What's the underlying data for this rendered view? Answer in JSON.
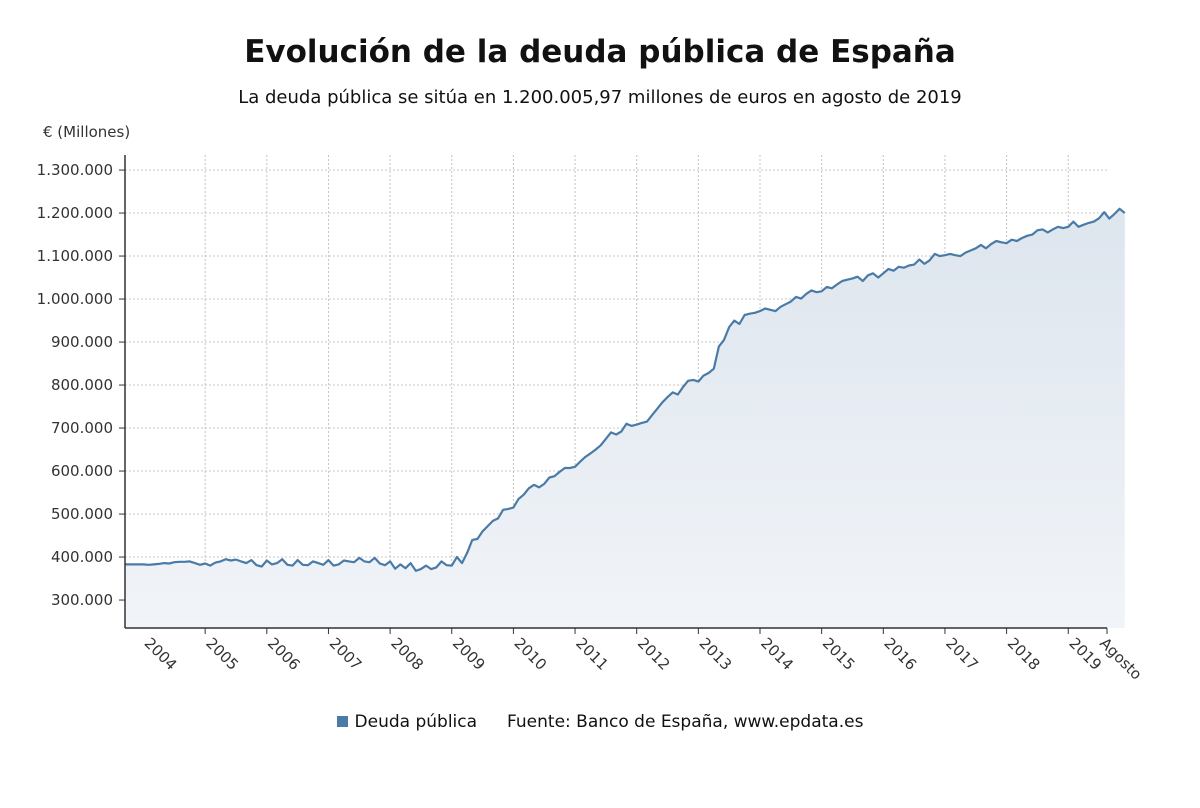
{
  "header": {
    "title": "Evolución de la deuda pública de España",
    "subtitle": "La deuda pública se sitúa en 1.200.005,97 millones de euros en agosto de 2019"
  },
  "legend": {
    "series_label": "Deuda pública",
    "source": "Fuente: Banco de España, www.epdata.es"
  },
  "colors": {
    "line": "#4a7ba6",
    "area_top": "#dde5ee",
    "area_bottom": "#f1f4f8",
    "grid": "#bfbfbf"
  },
  "chart_data": {
    "type": "area",
    "title": "Evolución de la deuda pública de España",
    "subtitle": "La deuda pública se sitúa en 1.200.005,97 millones de euros en agosto de 2019",
    "ylabel": "€ (Millones)",
    "ylim": [
      235000,
      1335000
    ],
    "yticks": [
      "300.000",
      "400.000",
      "500.000",
      "600.000",
      "700.000",
      "800.000",
      "900.000",
      "1.000.000",
      "1.100.000",
      "1.200.000",
      "1.300.000"
    ],
    "ytick_values": [
      300000,
      400000,
      500000,
      600000,
      700000,
      800000,
      900000,
      1000000,
      1100000,
      1200000,
      1300000
    ],
    "xticks": [
      "2004",
      "2005",
      "2006",
      "2007",
      "2008",
      "2009",
      "2010",
      "2011",
      "2012",
      "2013",
      "2014",
      "2015",
      "2016",
      "2017",
      "2018",
      "2019",
      "Agosto"
    ],
    "grid": true,
    "legend_position": "bottom",
    "series": [
      {
        "name": "Deuda pública",
        "x_start": "2004-01",
        "x_end": "2019-08",
        "frequency": "monthly",
        "values": [
          383000,
          382000,
          383000,
          384000,
          386000,
          385000,
          388000,
          389000,
          389000,
          390000,
          386000,
          382000,
          385000,
          380000,
          387000,
          390000,
          395000,
          392000,
          394000,
          390000,
          386000,
          393000,
          381000,
          378000,
          392000,
          383000,
          386000,
          395000,
          382000,
          380000,
          393000,
          382000,
          381000,
          390000,
          386000,
          382000,
          393000,
          380000,
          383000,
          392000,
          390000,
          388000,
          398000,
          390000,
          388000,
          398000,
          385000,
          381000,
          390000,
          373000,
          383000,
          374000,
          386000,
          368000,
          372000,
          380000,
          372000,
          376000,
          390000,
          381000,
          380000,
          400000,
          386000,
          410000,
          440000,
          442000,
          460000,
          472000,
          484000,
          490000,
          510000,
          512000,
          515000,
          535000,
          545000,
          560000,
          568000,
          562000,
          570000,
          585000,
          588000,
          598000,
          607000,
          607000,
          610000,
          622000,
          633000,
          641000,
          650000,
          660000,
          675000,
          690000,
          685000,
          692000,
          710000,
          705000,
          708000,
          712000,
          715000,
          730000,
          745000,
          760000,
          772000,
          783000,
          778000,
          795000,
          810000,
          812000,
          808000,
          822000,
          828000,
          838000,
          890000,
          905000,
          935000,
          950000,
          942000,
          963000,
          966000,
          968000,
          972000,
          978000,
          975000,
          972000,
          982000,
          988000,
          994000,
          1005000,
          1001000,
          1012000,
          1020000,
          1016000,
          1018000,
          1028000,
          1025000,
          1034000,
          1042000,
          1045000,
          1048000,
          1052000,
          1042000,
          1055000,
          1060000,
          1050000,
          1060000,
          1070000,
          1066000,
          1075000,
          1073000,
          1078000,
          1080000,
          1092000,
          1082000,
          1090000,
          1105000,
          1100000,
          1102000,
          1105000,
          1102000,
          1100000,
          1108000,
          1113000,
          1118000,
          1126000,
          1118000,
          1128000,
          1135000,
          1132000,
          1130000,
          1138000,
          1135000,
          1142000,
          1147000,
          1150000,
          1160000,
          1162000,
          1155000,
          1162000,
          1168000,
          1165000,
          1168000,
          1180000,
          1168000,
          1173000,
          1177000,
          1180000,
          1188000,
          1202000,
          1187000,
          1198000,
          1210000,
          1200006
        ]
      }
    ]
  }
}
